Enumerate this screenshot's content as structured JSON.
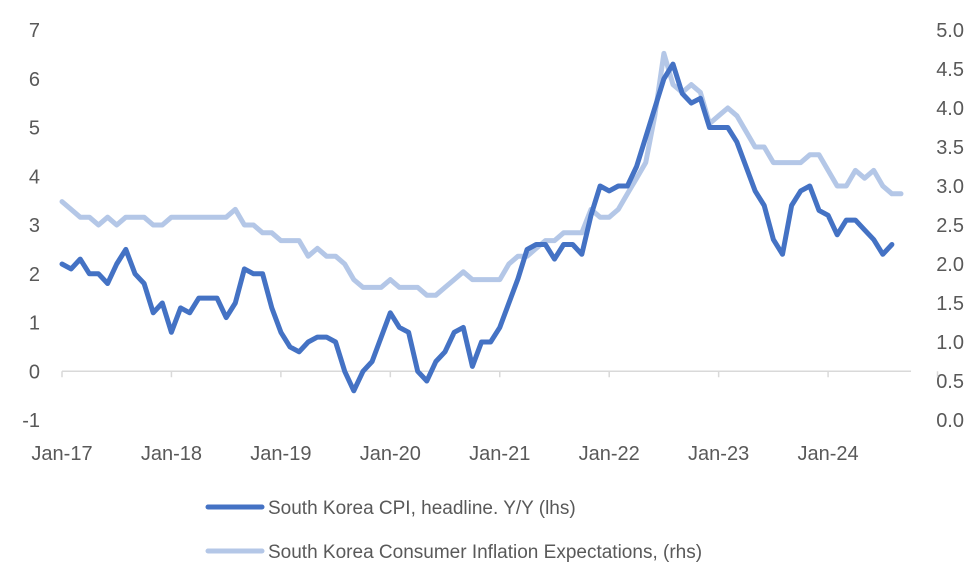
{
  "chart_data": {
    "type": "line",
    "title": "",
    "xlabel": "",
    "ylabel": "",
    "x_tick_labels": [
      "Jan-17",
      "Jan-18",
      "Jan-19",
      "Jan-20",
      "Jan-21",
      "Jan-22",
      "Jan-23",
      "Jan-24"
    ],
    "y_left": {
      "range": [
        -1,
        7
      ],
      "ticks": [
        "-1",
        "0",
        "1",
        "2",
        "3",
        "4",
        "5",
        "6",
        "7"
      ]
    },
    "y_right": {
      "range": [
        0.0,
        5.0
      ],
      "ticks": [
        "0.0",
        "0.5",
        "1.0",
        "1.5",
        "2.0",
        "2.5",
        "3.0",
        "3.5",
        "4.0",
        "4.5",
        "5.0"
      ]
    },
    "grid": false,
    "legend_position": "bottom",
    "start_month": "Jan-17",
    "series": [
      {
        "name": "South Korea CPI, headline. Y/Y (lhs)",
        "axis": "left",
        "color": "#4472C4",
        "values": [
          2.2,
          2.1,
          2.3,
          2.0,
          2.0,
          1.8,
          2.2,
          2.5,
          2.0,
          1.8,
          1.2,
          1.4,
          0.8,
          1.3,
          1.2,
          1.5,
          1.5,
          1.5,
          1.1,
          1.4,
          2.1,
          2.0,
          2.0,
          1.3,
          0.8,
          0.5,
          0.4,
          0.6,
          0.7,
          0.7,
          0.6,
          0.0,
          -0.4,
          0.0,
          0.2,
          0.7,
          1.2,
          0.9,
          0.8,
          0.0,
          -0.2,
          0.2,
          0.4,
          0.8,
          0.9,
          0.1,
          0.6,
          0.6,
          0.9,
          1.4,
          1.9,
          2.5,
          2.6,
          2.6,
          2.3,
          2.6,
          2.6,
          2.4,
          3.2,
          3.8,
          3.7,
          3.8,
          3.8,
          4.2,
          4.8,
          5.4,
          6.0,
          6.3,
          5.7,
          5.5,
          5.6,
          5.0,
          5.0,
          5.0,
          4.7,
          4.2,
          3.7,
          3.4,
          2.7,
          2.4,
          3.4,
          3.7,
          3.8,
          3.3,
          3.2,
          2.8,
          3.1,
          3.1,
          2.9,
          2.7,
          2.4,
          2.6
        ]
      },
      {
        "name": "South Korea Consumer Inflation Expectations, (rhs)",
        "axis": "right",
        "color": "#B4C7E7",
        "values": [
          2.8,
          2.7,
          2.6,
          2.6,
          2.5,
          2.6,
          2.5,
          2.6,
          2.6,
          2.6,
          2.5,
          2.5,
          2.6,
          2.6,
          2.6,
          2.6,
          2.6,
          2.6,
          2.6,
          2.7,
          2.5,
          2.5,
          2.4,
          2.4,
          2.3,
          2.3,
          2.3,
          2.1,
          2.2,
          2.1,
          2.1,
          2.0,
          1.8,
          1.7,
          1.7,
          1.7,
          1.8,
          1.7,
          1.7,
          1.7,
          1.6,
          1.6,
          1.7,
          1.8,
          1.9,
          1.8,
          1.8,
          1.8,
          1.8,
          2.0,
          2.1,
          2.1,
          2.2,
          2.3,
          2.3,
          2.4,
          2.4,
          2.4,
          2.7,
          2.6,
          2.6,
          2.7,
          2.9,
          3.1,
          3.3,
          3.9,
          4.7,
          4.3,
          4.2,
          4.3,
          4.2,
          3.8,
          3.9,
          4.0,
          3.9,
          3.7,
          3.5,
          3.5,
          3.3,
          3.3,
          3.3,
          3.3,
          3.4,
          3.4,
          3.2,
          3.0,
          3.0,
          3.2,
          3.1,
          3.2,
          3.0,
          2.9,
          2.9
        ]
      }
    ]
  }
}
